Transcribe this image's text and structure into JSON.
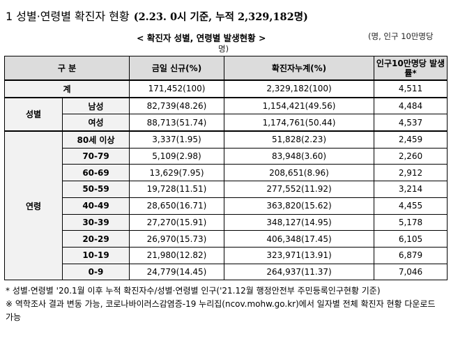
{
  "title": {
    "main": "1 성별·연령별 확진자 현황",
    "sub": "(2.23. 0시 기준, 누적 2,329,182명)"
  },
  "table_title": "< 확진자 성별, 연령별 발생현황 >",
  "unit_note_a": "(명, 인구 10만명당",
  "unit_note_b": "명)",
  "headers": {
    "category": "구 분",
    "new": "금일 신규(%)",
    "cumulative": "확진자누계(%)",
    "rate": "인구10만명당 발생률*"
  },
  "total": {
    "label": "계",
    "new": "171,452(100)",
    "cum": "2,329,182(100)",
    "rate": "4,511"
  },
  "gender": {
    "group_label": "성별",
    "rows": [
      {
        "label": "남성",
        "new": "82,739(48.26)",
        "cum": "1,154,421(49.56)",
        "rate": "4,484"
      },
      {
        "label": "여성",
        "new": "88,713(51.74)",
        "cum": "1,174,761(50.44)",
        "rate": "4,537"
      }
    ]
  },
  "age": {
    "group_label": "연령",
    "rows": [
      {
        "label": "80세 이상",
        "new": "3,337(1.95)",
        "cum": "51,828(2.23)",
        "rate": "2,459"
      },
      {
        "label": "70-79",
        "new": "5,109(2.98)",
        "cum": "83,948(3.60)",
        "rate": "2,260"
      },
      {
        "label": "60-69",
        "new": "13,629(7.95)",
        "cum": "208,651(8.96)",
        "rate": "2,912"
      },
      {
        "label": "50-59",
        "new": "19,728(11.51)",
        "cum": "277,552(11.92)",
        "rate": "3,214"
      },
      {
        "label": "40-49",
        "new": "28,650(16.71)",
        "cum": "363,820(15.62)",
        "rate": "4,455"
      },
      {
        "label": "30-39",
        "new": "27,270(15.91)",
        "cum": "348,127(14.95)",
        "rate": "5,178"
      },
      {
        "label": "20-29",
        "new": "26,970(15.73)",
        "cum": "406,348(17.45)",
        "rate": "6,105"
      },
      {
        "label": "10-19",
        "new": "21,980(12.82)",
        "cum": "323,971(13.91)",
        "rate": "6,879"
      },
      {
        "label": "0-9",
        "new": "24,779(14.45)",
        "cum": "264,937(11.37)",
        "rate": "7,046"
      }
    ]
  },
  "footnotes": [
    "* 성별·연령별 '20.1월 이후 누적 확진자수/성별·연령별 인구('21.12월 행정안전부 주민등록인구현황 기준)",
    "※ 역학조사 결과 변동 가능, 코로나바이러스감염증-19 누리집(ncov.mohw.go.kr)에서 일자별 전체 확진자 현황 다운로드 가능"
  ]
}
